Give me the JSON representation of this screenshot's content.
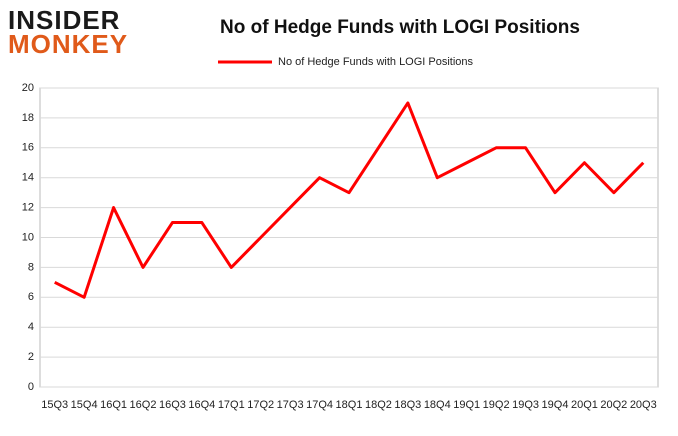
{
  "logo": {
    "line1": "INSIDER",
    "line2": "MONKEY"
  },
  "chart_data": {
    "type": "line",
    "title": "No of Hedge Funds with LOGI Positions",
    "categories": [
      "15Q3",
      "15Q4",
      "16Q1",
      "16Q2",
      "16Q3",
      "16Q4",
      "17Q1",
      "17Q2",
      "17Q3",
      "17Q4",
      "18Q1",
      "18Q2",
      "18Q3",
      "18Q4",
      "19Q1",
      "19Q2",
      "19Q3",
      "19Q4",
      "20Q1",
      "20Q2",
      "20Q3"
    ],
    "series": [
      {
        "name": "No of Hedge Funds with LOGI Positions",
        "color": "#ff0000",
        "values": [
          7,
          6,
          12,
          8,
          11,
          11,
          8,
          10,
          12,
          14,
          13,
          16,
          19,
          14,
          15,
          16,
          16,
          13,
          15,
          13,
          15
        ]
      }
    ],
    "ylim": [
      0,
      20
    ],
    "yticks": [
      0,
      2,
      4,
      6,
      8,
      10,
      12,
      14,
      16,
      18,
      20
    ],
    "grid": true,
    "legend": "top"
  }
}
